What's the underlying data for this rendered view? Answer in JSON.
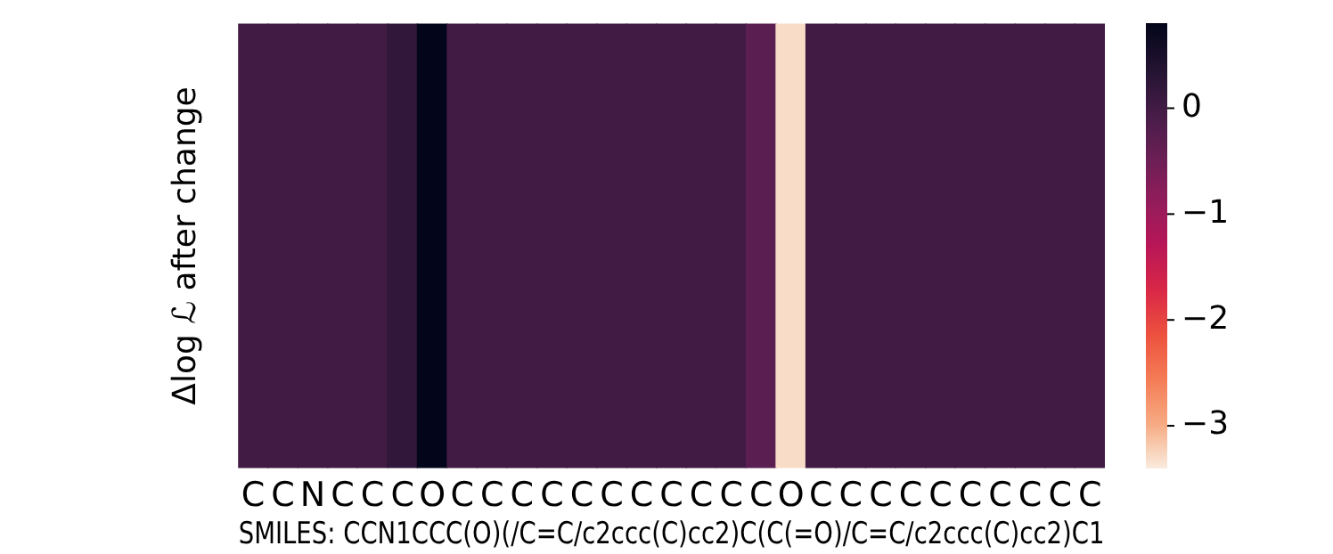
{
  "chart_data": {
    "type": "heatmap",
    "xlabel": "SMILES: CCN1CCC(O)(/C=C/c2ccc(C)cc2)C(C(=O)/C=C/c2ccc(C)cc2)C1",
    "ylabel": "Δlog ℒ after change",
    "categories": [
      "C",
      "C",
      "N",
      "C",
      "C",
      "C",
      "O",
      "C",
      "C",
      "C",
      "C",
      "C",
      "C",
      "C",
      "C",
      "C",
      "C",
      "C",
      "O",
      "C",
      "C",
      "C",
      "C",
      "C",
      "C",
      "C",
      "C",
      "C",
      "C"
    ],
    "y_categories": [
      null
    ],
    "cells": [
      [
        0.0,
        0.0,
        0.0,
        0.0,
        0.0,
        0.2,
        0.8,
        0.0,
        0.0,
        0.0,
        0.0,
        0.0,
        0.0,
        0.0,
        0.0,
        0.0,
        0.0,
        -0.3,
        -3.3,
        0.0,
        0.0,
        0.0,
        0.0,
        0.0,
        0.0,
        0.0,
        0.0,
        0.0,
        0.0
      ]
    ],
    "clim": [
      -3.4,
      0.8
    ],
    "cticks": [
      0,
      -1,
      -2,
      -3
    ]
  }
}
